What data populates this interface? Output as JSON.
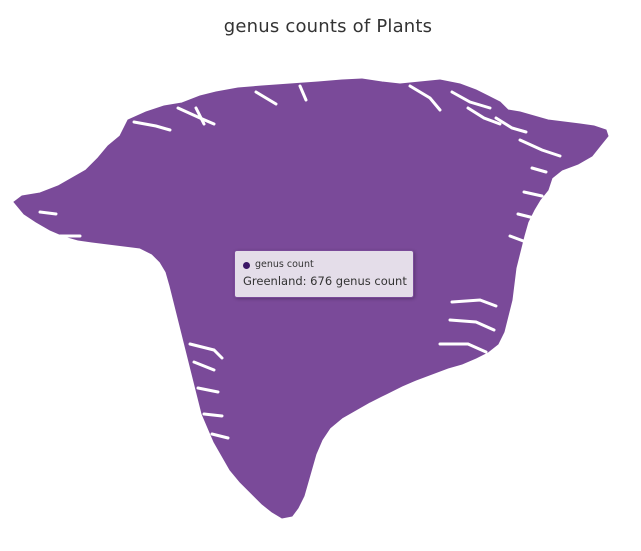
{
  "title": "genus counts of Plants",
  "map": {
    "region": "Greenland",
    "metric": "genus count",
    "value": 676,
    "fill_color": "#7a4a99",
    "water_color": "#ffffff"
  },
  "tooltip": {
    "series_label": "genus count",
    "text": "Greenland: 676 genus count",
    "marker_color": "#3b1666"
  }
}
